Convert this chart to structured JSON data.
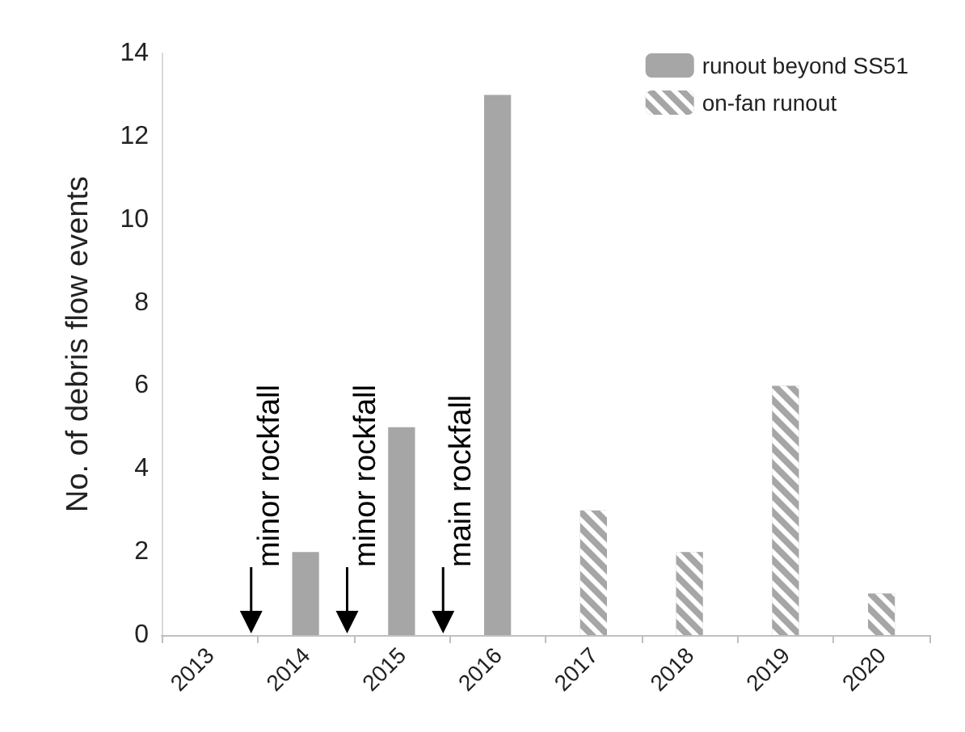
{
  "chart_data": {
    "type": "bar",
    "ylabel": "No. of debris flow events",
    "categories": [
      "2013",
      "2014",
      "2015",
      "2016",
      "2017",
      "2018",
      "2019",
      "2020"
    ],
    "series": [
      {
        "name": "runout beyond SS51",
        "color": "#a6a6a6",
        "values": [
          null,
          2,
          5,
          13,
          null,
          null,
          null,
          null
        ]
      },
      {
        "name": "on-fan runout",
        "color": "#a6a6a6",
        "values": [
          null,
          null,
          null,
          null,
          3,
          2,
          6,
          1
        ]
      }
    ],
    "ylim": [
      0,
      14
    ],
    "yticks": [
      0,
      2,
      4,
      6,
      8,
      10,
      12,
      14
    ],
    "grid": false,
    "legend": "top right",
    "annotations": [
      "minor rockfall",
      "minor rockfall",
      "main rockfall"
    ]
  }
}
